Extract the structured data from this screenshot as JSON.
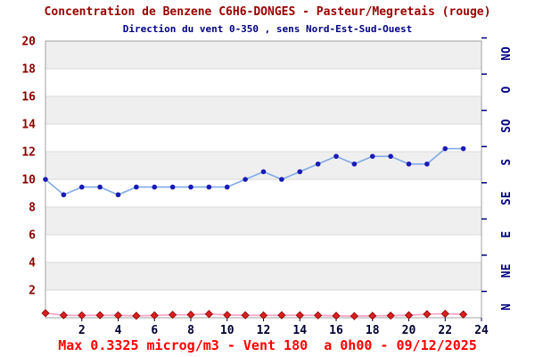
{
  "title": "Concentration de Benzene C6H6-DONGES - Pasteur/Megretais (rouge)",
  "subtitle": "Direction du vent 0-350 , sens Nord-Est-Sud-Ouest",
  "footer": "Max 0.3325 microg/m3 - Vent 180  a 0h00 - 09/12/2025",
  "stats": {
    "max_concentration": "0.3325 microg/m3",
    "vent_degrees": "180",
    "at_time": "0h00",
    "date": "09/12/2025"
  },
  "colors": {
    "title": "#990000",
    "subtitle": "#000080",
    "footer": "#ff0000",
    "left_axis_labels": "#8b0000",
    "x_axis_labels": "#000033",
    "right_axis_labels": "#000080",
    "band_gray": "#efefef",
    "band_white": "#ffffff",
    "grid_line": "#d8d8d8",
    "plot_border": "#a0a0a0",
    "wind_line": "#80aae6",
    "wind_marker": "#1a1ab8",
    "benzene_line": "#f8a8c8",
    "benzene_marker_fill": "#d82020",
    "benzene_marker_stroke": "#8b0000"
  },
  "chart_data": {
    "type": "line",
    "title": "Concentration de Benzene C6H6-DONGES - Pasteur/Megretais (rouge)",
    "subtitle": "Direction du vent 0-350 , sens Nord-Est-Sud-Ouest",
    "x_hours": [
      0,
      1,
      2,
      3,
      4,
      5,
      6,
      7,
      8,
      9,
      10,
      11,
      12,
      13,
      14,
      15,
      16,
      17,
      18,
      19,
      20,
      21,
      22,
      23
    ],
    "x_axis": {
      "tick_labels": [
        "2",
        "4",
        "6",
        "8",
        "10",
        "12",
        "14",
        "16",
        "18",
        "20",
        "22",
        "24"
      ],
      "tick_values": [
        2,
        4,
        6,
        8,
        10,
        12,
        14,
        16,
        18,
        20,
        22,
        24
      ],
      "range": [
        0,
        24
      ]
    },
    "left_axis": {
      "tick_labels": [
        "2",
        "4",
        "6",
        "8",
        "10",
        "12",
        "14",
        "16",
        "18",
        "20"
      ],
      "tick_values": [
        2,
        4,
        6,
        8,
        10,
        12,
        14,
        16,
        18,
        20
      ],
      "range": [
        0,
        20
      ]
    },
    "right_axis": {
      "labels_bottom_to_top": [
        "N",
        "NE",
        "E",
        "SE",
        "S",
        "SO",
        "O",
        "NO"
      ],
      "range_degrees": [
        0,
        360
      ],
      "description": "Direction du vent 0-350, sens Nord-Est-Sud-Ouest"
    },
    "grid": true,
    "legend": "none",
    "series": [
      {
        "name": "Direction du vent (bleu)",
        "marker": "circle",
        "axis": "right-degrees",
        "values_degrees": [
          180,
          160,
          170,
          170,
          160,
          170,
          170,
          170,
          170,
          170,
          170,
          180,
          190,
          180,
          190,
          200,
          210,
          200,
          210,
          210,
          200,
          200,
          220,
          220
        ]
      },
      {
        "name": "Concentration de Benzene C6H6 (rouge)",
        "marker": "diamond",
        "axis": "left",
        "unit": "microg/m3",
        "values": [
          0.3325,
          0.18,
          0.17,
          0.18,
          0.17,
          0.14,
          0.17,
          0.21,
          0.22,
          0.27,
          0.2,
          0.18,
          0.17,
          0.18,
          0.18,
          0.17,
          0.14,
          0.12,
          0.14,
          0.15,
          0.18,
          0.26,
          0.29,
          0.24
        ]
      }
    ]
  }
}
